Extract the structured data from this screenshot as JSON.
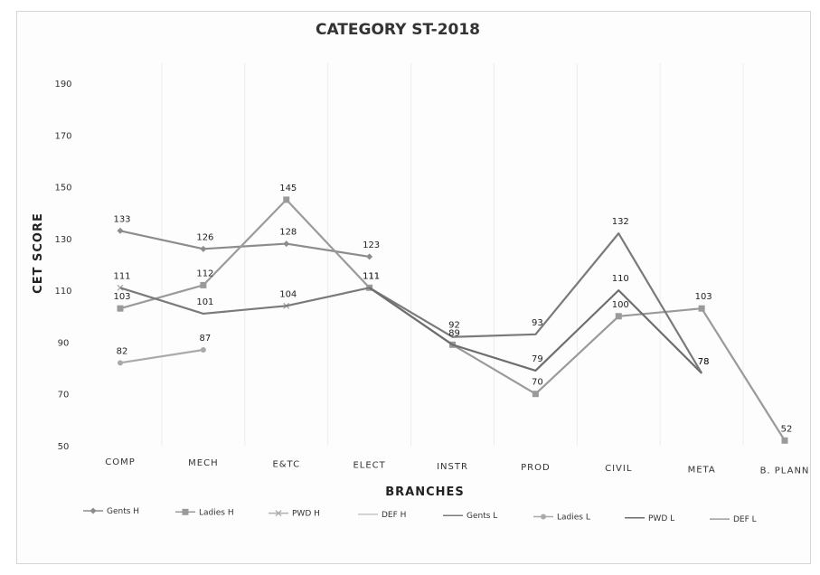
{
  "chart_data": {
    "type": "line",
    "title": "CATEGORY ST-2018",
    "xlabel": "BRANCHES",
    "ylabel": "CET SCORE",
    "categories": [
      "COMP",
      "MECH",
      "E&TC",
      "ELECT",
      "INSTR",
      "PROD",
      "CIVIL",
      "META",
      "B. PLANN"
    ],
    "yticks": [
      50,
      70,
      90,
      110,
      130,
      150,
      170,
      190
    ],
    "ylim": [
      50,
      190
    ],
    "grid": "vertical",
    "legend_position": "bottom",
    "series": [
      {
        "name": "Gents H",
        "color": "#8c8c8c",
        "marker": "diamond",
        "values": [
          133,
          126,
          128,
          123,
          null,
          null,
          null,
          null,
          null
        ],
        "labels": [
          "133",
          "126",
          "128",
          "123",
          null,
          null,
          null,
          null,
          null
        ]
      },
      {
        "name": "Ladies H",
        "color": "#9a9a9a",
        "marker": "square",
        "values": [
          103,
          112,
          145,
          111,
          89,
          70,
          100,
          103,
          52
        ],
        "labels": [
          "103",
          "112",
          "145",
          "111",
          "89",
          "70",
          "100",
          "103",
          "52"
        ]
      },
      {
        "name": "PWD H",
        "color": "#b0b0b0",
        "marker": "cross",
        "values": [
          111,
          null,
          104,
          null,
          null,
          null,
          null,
          null,
          null
        ],
        "labels": [
          "111",
          null,
          "104",
          null,
          null,
          null,
          null,
          null,
          null
        ]
      },
      {
        "name": "DEF H",
        "color": "#c4c4c4",
        "marker": "none",
        "values": [
          null,
          null,
          null,
          null,
          null,
          null,
          null,
          null,
          null
        ],
        "labels": [
          null,
          null,
          null,
          null,
          null,
          null,
          null,
          null,
          null
        ]
      },
      {
        "name": "Gents L",
        "color": "#7a7a7a",
        "marker": "none",
        "values": [
          111,
          101,
          104,
          111,
          92,
          93,
          132,
          78,
          null
        ],
        "labels": [
          null,
          "101",
          null,
          "111",
          "92",
          "93",
          "132",
          "78",
          null
        ]
      },
      {
        "name": "Ladies L",
        "color": "#aaaaaa",
        "marker": "circle",
        "values": [
          82,
          87,
          null,
          null,
          null,
          null,
          null,
          null,
          null
        ],
        "labels": [
          "82",
          "87",
          null,
          null,
          null,
          null,
          null,
          null,
          null
        ]
      },
      {
        "name": "PWD L",
        "color": "#6e6e6e",
        "marker": "none",
        "values": [
          111,
          null,
          null,
          111,
          89,
          79,
          110,
          78,
          null
        ],
        "labels": [
          null,
          null,
          null,
          null,
          null,
          "79",
          "110",
          "78",
          null
        ]
      },
      {
        "name": "DEF L",
        "color": "#9e9e9e",
        "marker": "none",
        "values": [
          null,
          null,
          null,
          null,
          null,
          null,
          null,
          null,
          null
        ],
        "labels": [
          null,
          null,
          null,
          null,
          null,
          null,
          null,
          null,
          null
        ]
      }
    ]
  }
}
